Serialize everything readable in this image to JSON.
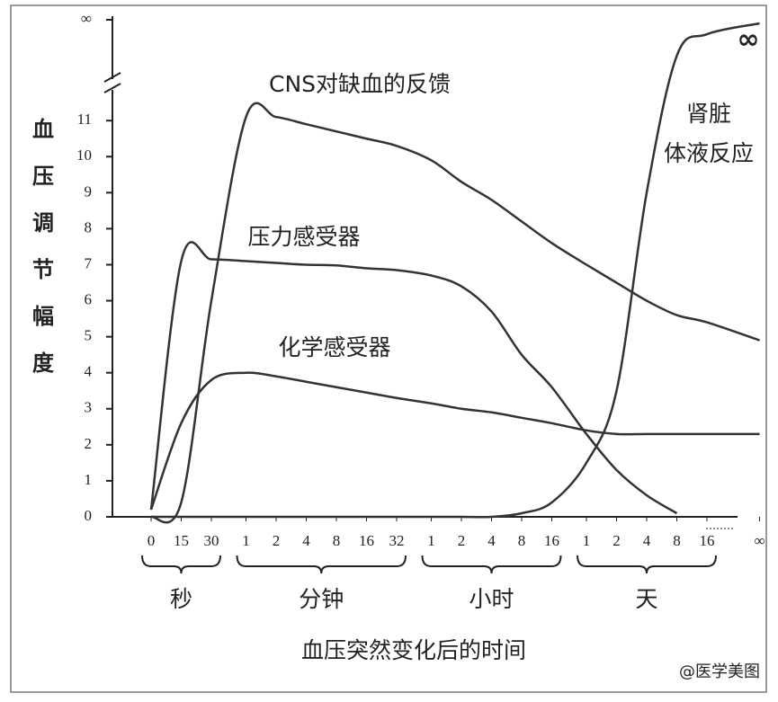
{
  "chart_data": {
    "type": "line",
    "y_label": "血压调节幅度",
    "x_label": "血压突然变化后的时间",
    "watermark": "@医学美图",
    "annotation": "∞",
    "groups": [
      {
        "label": "秒",
        "categories": [
          "0",
          "15",
          "30"
        ]
      },
      {
        "label": "分钟",
        "categories": [
          "1",
          "2",
          "4",
          "8",
          "16",
          "32"
        ]
      },
      {
        "label": "小时",
        "categories": [
          "1",
          "2",
          "4",
          "8",
          "16"
        ]
      },
      {
        "label": "天",
        "categories": [
          "1",
          "2",
          "4",
          "8",
          "16"
        ]
      },
      {
        "categories": [
          "∞"
        ]
      }
    ],
    "ylim": [
      0,
      13.8
    ],
    "yticks": [
      0,
      1,
      2,
      3,
      4,
      5,
      6,
      7,
      8,
      9,
      10,
      11,
      {
        "value": 13.8,
        "label": "∞"
      }
    ],
    "series": [
      {
        "name": [
          "CNS对缺血的反馈"
        ],
        "color": "#333333",
        "values": [
          0,
          0.4,
          6,
          11.1,
          11.1,
          10.9,
          10.7,
          10.5,
          10.3,
          9.9,
          9.3,
          8.8,
          8.2,
          7.6,
          7.0,
          6.5,
          6.0,
          5.6,
          5.4,
          4.9
        ]
      },
      {
        "name": [
          "压力感受器"
        ],
        "color": "#333333",
        "values": [
          0.2,
          7.1,
          7.15,
          7.1,
          7.05,
          7.0,
          6.98,
          6.9,
          6.85,
          6.7,
          6.4,
          5.7,
          4.5,
          3.6,
          2.3,
          1.3,
          0.6,
          0.1,
          null,
          null
        ]
      },
      {
        "name": [
          "化学感受器"
        ],
        "color": "#333333",
        "values": [
          0.2,
          2.6,
          3.8,
          4.0,
          3.9,
          3.75,
          3.6,
          3.45,
          3.3,
          3.15,
          3.0,
          2.9,
          2.75,
          2.6,
          2.4,
          2.3,
          2.3,
          2.3,
          2.3,
          2.3
        ]
      },
      {
        "name": [
          "肾脏",
          "体液反应"
        ],
        "color": "#333333",
        "values": [
          0,
          0,
          0,
          0,
          0,
          0,
          0,
          0,
          0,
          0,
          0,
          0,
          0.1,
          0.4,
          1.5,
          3.5,
          9,
          12.8,
          13.4,
          13.7
        ]
      }
    ]
  }
}
